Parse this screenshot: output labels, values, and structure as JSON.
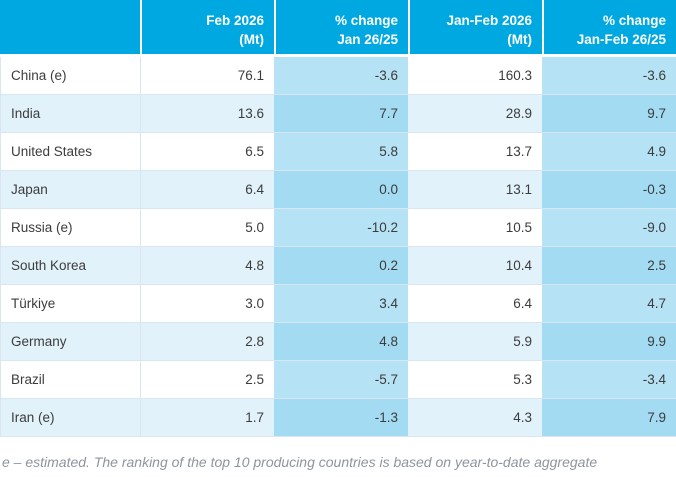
{
  "page": {
    "footnote": "e – estimated. The ranking of the top 10 producing countries is based on year-to-date aggregate"
  },
  "colors": {
    "header_bg": "#00a8e1",
    "header_text": "#ffffff",
    "row_alt_bg": "#e2f2fa",
    "pct_cell_on_white_row": "#b5e2f5",
    "pct_cell_on_alt_row": "#a3dbf2",
    "row_border": "#d9e6ef",
    "body_text": "#3c3c3c",
    "footnote_text": "#8f959c"
  },
  "header": {
    "col_country": "",
    "col_feb": {
      "line1": "Feb 2026",
      "line2": "(Mt)"
    },
    "col_pct_jan": {
      "line1": "% change",
      "line2": "Jan 26/25"
    },
    "col_janfeb": {
      "line1": "Jan-Feb 2026",
      "line2": "(Mt)"
    },
    "col_pct_janfeb": {
      "line1": "% change",
      "line2": "Jan-Feb 26/25"
    }
  },
  "rows": [
    {
      "country": "China (e)",
      "feb_mt": "76.1",
      "pct_change_jan": "-3.6",
      "janfeb_mt": "160.3",
      "pct_change_janfeb": "-3.6"
    },
    {
      "country": "India",
      "feb_mt": "13.6",
      "pct_change_jan": "7.7",
      "janfeb_mt": "28.9",
      "pct_change_janfeb": "9.7"
    },
    {
      "country": "United States",
      "feb_mt": "6.5",
      "pct_change_jan": "5.8",
      "janfeb_mt": "13.7",
      "pct_change_janfeb": "4.9"
    },
    {
      "country": "Japan",
      "feb_mt": "6.4",
      "pct_change_jan": "0.0",
      "janfeb_mt": "13.1",
      "pct_change_janfeb": "-0.3"
    },
    {
      "country": "Russia (e)",
      "feb_mt": "5.0",
      "pct_change_jan": "-10.2",
      "janfeb_mt": "10.5",
      "pct_change_janfeb": "-9.0"
    },
    {
      "country": "South Korea",
      "feb_mt": "4.8",
      "pct_change_jan": "0.2",
      "janfeb_mt": "10.4",
      "pct_change_janfeb": "2.5"
    },
    {
      "country": "Türkiye",
      "feb_mt": "3.0",
      "pct_change_jan": "3.4",
      "janfeb_mt": "6.4",
      "pct_change_janfeb": "4.7"
    },
    {
      "country": "Germany",
      "feb_mt": "2.8",
      "pct_change_jan": "4.8",
      "janfeb_mt": "5.9",
      "pct_change_janfeb": "9.9"
    },
    {
      "country": "Brazil",
      "feb_mt": "2.5",
      "pct_change_jan": "-5.7",
      "janfeb_mt": "5.3",
      "pct_change_janfeb": "-3.4"
    },
    {
      "country": "Iran (e)",
      "feb_mt": "1.7",
      "pct_change_jan": "-1.3",
      "janfeb_mt": "4.3",
      "pct_change_janfeb": "7.9"
    }
  ],
  "chart_data": {
    "type": "table",
    "columns": [
      "",
      "Feb 2026 (Mt)",
      "% change Jan 26/25",
      "Jan-Feb 2026 (Mt)",
      "% change Jan-Feb 26/25"
    ],
    "rows": [
      [
        "China (e)",
        76.1,
        -3.6,
        160.3,
        -3.6
      ],
      [
        "India",
        13.6,
        7.7,
        28.9,
        9.7
      ],
      [
        "United States",
        6.5,
        5.8,
        13.7,
        4.9
      ],
      [
        "Japan",
        6.4,
        0.0,
        13.1,
        -0.3
      ],
      [
        "Russia (e)",
        5.0,
        -10.2,
        10.5,
        -9.0
      ],
      [
        "South Korea",
        4.8,
        0.2,
        10.4,
        2.5
      ],
      [
        "Türkiye",
        3.0,
        3.4,
        6.4,
        4.7
      ],
      [
        "Germany",
        2.8,
        4.8,
        5.9,
        9.9
      ],
      [
        "Brazil",
        2.5,
        -5.7,
        5.3,
        -3.4
      ],
      [
        "Iran (e)",
        1.7,
        -1.3,
        4.3,
        7.9
      ]
    ],
    "footnote": "e – estimated. The ranking of the top 10 producing countries is based on year-to-date aggregate"
  }
}
